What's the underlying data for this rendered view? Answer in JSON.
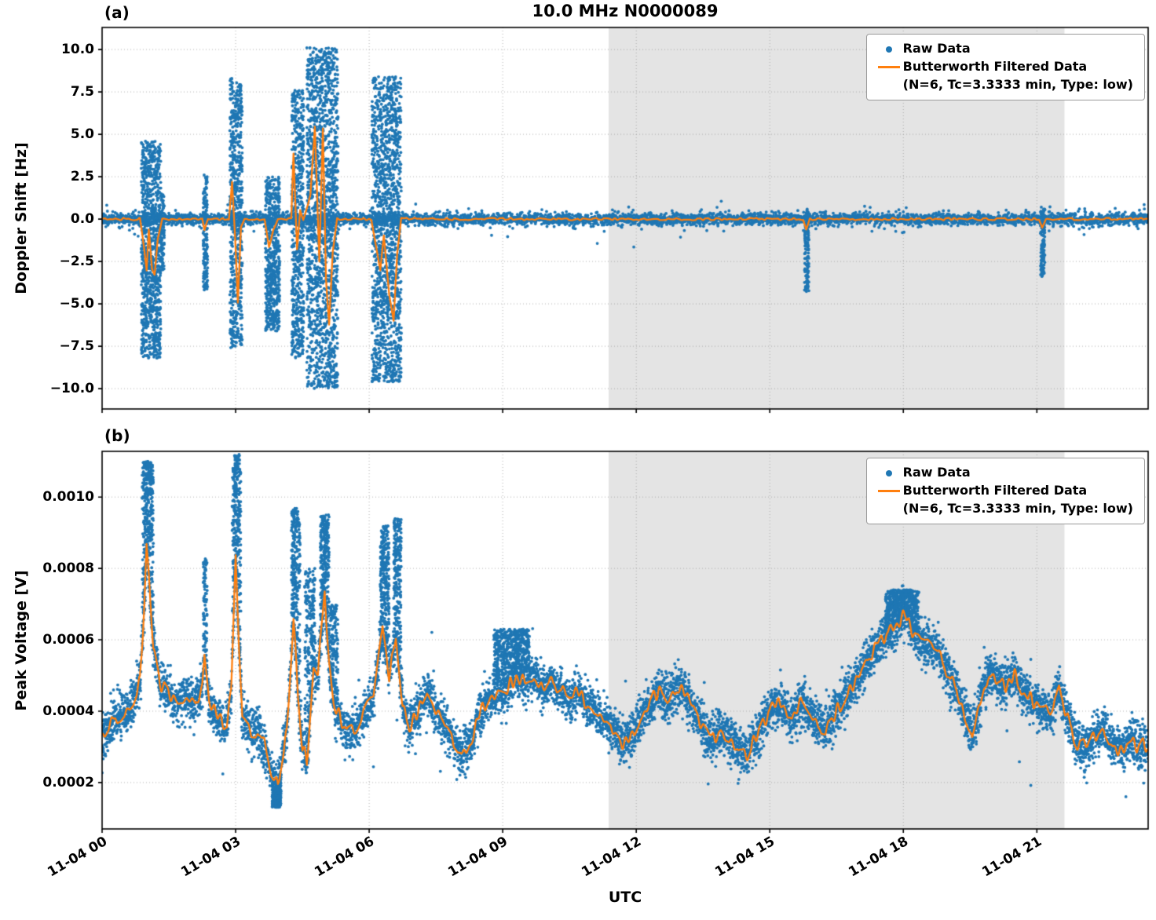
{
  "figure": {
    "title": "10.0 MHz N0000089",
    "xlabel": "UTC",
    "colors": {
      "raw": "#1f77b4",
      "filtered": "#ff7f0e",
      "shade": "#e4e4e4",
      "grid": "#9a9a9a",
      "spine": "#000000",
      "background": "#ffffff"
    },
    "legend": {
      "raw_label": "Raw Data",
      "filtered_label": "Butterworth Filtered Data",
      "filtered_sub": "(N=6, Tc=3.3333 min, Type: low)"
    },
    "x_ticks": [
      {
        "hours": 0,
        "label": "11-04 00"
      },
      {
        "hours": 3,
        "label": "11-04 03"
      },
      {
        "hours": 6,
        "label": "11-04 06"
      },
      {
        "hours": 9,
        "label": "11-04 09"
      },
      {
        "hours": 12,
        "label": "11-04 12"
      },
      {
        "hours": 15,
        "label": "11-04 15"
      },
      {
        "hours": 18,
        "label": "11-04 18"
      },
      {
        "hours": 21,
        "label": "11-04 21"
      }
    ]
  },
  "chart_data": [
    {
      "type": "scatter",
      "tag": "(a)",
      "title": "10.0 MHz N0000089",
      "xlabel": "UTC",
      "ylabel": "Doppler Shift [Hz]",
      "xlim_hours": [
        0,
        23.5
      ],
      "ylim": [
        -11.2,
        11.3
      ],
      "y_ticks": [
        10.0,
        7.5,
        5.0,
        2.5,
        0.0,
        -2.5,
        -5.0,
        -7.5,
        -10.0
      ],
      "y_tick_labels": [
        "10.0",
        "7.5",
        "5.0",
        "2.5",
        "0.0",
        "−2.5",
        "−5.0",
        "−7.5",
        "−10.0"
      ],
      "grid": true,
      "legend_position": "upper right",
      "shaded_region_hours": [
        11.38,
        21.62
      ],
      "series": [
        {
          "name": "Raw Data",
          "kind": "scatter",
          "color": "#1f77b4",
          "baseline_mean": 0,
          "baseline_noise": 0.18,
          "bursts": [
            {
              "t0": 0.88,
              "t1": 1.32,
              "lo": -8.2,
              "hi": 4.6
            },
            {
              "t0": 1.32,
              "t1": 1.4,
              "lo": -3.0,
              "hi": 1.5,
              "d": 0.5
            },
            {
              "t0": 2.27,
              "t1": 2.37,
              "lo": -4.2,
              "hi": 2.6,
              "d": 0.8
            },
            {
              "t0": 2.87,
              "t1": 3.15,
              "lo": -7.6,
              "hi": 8.3
            },
            {
              "t0": 3.67,
              "t1": 3.99,
              "lo": -6.6,
              "hi": 2.5,
              "d": 0.8
            },
            {
              "t0": 4.26,
              "t1": 4.53,
              "lo": -8.2,
              "hi": 7.6
            },
            {
              "t0": 4.6,
              "t1": 5.3,
              "lo": -10.0,
              "hi": 10.1
            },
            {
              "t0": 6.06,
              "t1": 6.72,
              "lo": -9.6,
              "hi": 8.4
            },
            {
              "t0": 15.78,
              "t1": 15.88,
              "lo": -4.3,
              "hi": 0.6,
              "d": 0.6
            },
            {
              "t0": 21.08,
              "t1": 21.18,
              "lo": -3.4,
              "hi": 0.6,
              "d": 0.6
            }
          ]
        },
        {
          "name": "Butterworth Filtered Data (N=6, Tc=3.3333 min, Type: low)",
          "kind": "line",
          "color": "#ff7f0e",
          "keypoints": [
            [
              0,
              0
            ],
            [
              0.85,
              0
            ],
            [
              0.95,
              -1.8
            ],
            [
              1.0,
              -3.0
            ],
            [
              1.05,
              -0.6
            ],
            [
              1.12,
              -2.9
            ],
            [
              1.18,
              -3.3
            ],
            [
              1.25,
              -1.2
            ],
            [
              1.35,
              0
            ],
            [
              2.25,
              0
            ],
            [
              2.3,
              -0.7
            ],
            [
              2.38,
              0
            ],
            [
              2.85,
              0
            ],
            [
              2.92,
              2.2
            ],
            [
              2.99,
              -1.2
            ],
            [
              3.05,
              -4.9
            ],
            [
              3.12,
              -0.5
            ],
            [
              3.2,
              0
            ],
            [
              3.65,
              0
            ],
            [
              3.75,
              -1.6
            ],
            [
              3.85,
              -0.6
            ],
            [
              3.95,
              0
            ],
            [
              4.25,
              0
            ],
            [
              4.3,
              3.9
            ],
            [
              4.38,
              -1.8
            ],
            [
              4.45,
              0.5
            ],
            [
              4.52,
              0
            ],
            [
              4.68,
              1.4
            ],
            [
              4.78,
              5.5
            ],
            [
              4.88,
              -2.5
            ],
            [
              4.96,
              5.3
            ],
            [
              5.03,
              -3.5
            ],
            [
              5.1,
              -6.3
            ],
            [
              5.18,
              -2.0
            ],
            [
              5.28,
              0
            ],
            [
              6.05,
              0
            ],
            [
              6.15,
              -1.5
            ],
            [
              6.25,
              -3.0
            ],
            [
              6.33,
              -1.0
            ],
            [
              6.45,
              -4.5
            ],
            [
              6.55,
              -6.0
            ],
            [
              6.63,
              -2.0
            ],
            [
              6.72,
              0
            ],
            [
              15.75,
              0
            ],
            [
              15.82,
              -0.6
            ],
            [
              15.9,
              0
            ],
            [
              21.05,
              0
            ],
            [
              21.12,
              -0.5
            ],
            [
              21.2,
              0
            ],
            [
              23.5,
              0
            ]
          ]
        }
      ]
    },
    {
      "type": "scatter",
      "tag": "(b)",
      "xlabel": "UTC",
      "ylabel": "Peak Voltage [V]",
      "xlim_hours": [
        0,
        23.5
      ],
      "ylim": [
        7e-05,
        0.001128
      ],
      "y_ticks": [
        0.001,
        0.0008,
        0.0006,
        0.0004,
        0.0002
      ],
      "y_tick_labels": [
        "0.0010",
        "0.0008",
        "0.0006",
        "0.0004",
        "0.0002"
      ],
      "grid": true,
      "legend_position": "upper right",
      "shaded_region_hours": [
        11.38,
        21.62
      ],
      "series": [
        {
          "name": "Raw Data",
          "kind": "scatter",
          "color": "#1f77b4",
          "band_noise": 3e-05,
          "mean_keypoints": [
            [
              0,
              0.00032
            ],
            [
              0.3,
              0.00038
            ],
            [
              0.5,
              0.0004
            ],
            [
              0.7,
              0.00042
            ],
            [
              0.85,
              0.00048
            ],
            [
              0.95,
              0.0007
            ],
            [
              1.0,
              0.00086
            ],
            [
              1.05,
              0.00078
            ],
            [
              1.15,
              0.00058
            ],
            [
              1.3,
              0.00048
            ],
            [
              1.5,
              0.00045
            ],
            [
              1.7,
              0.00042
            ],
            [
              1.9,
              0.00045
            ],
            [
              2.1,
              0.00042
            ],
            [
              2.25,
              0.00048
            ],
            [
              2.3,
              0.00055
            ],
            [
              2.4,
              0.00042
            ],
            [
              2.6,
              0.00038
            ],
            [
              2.8,
              0.00036
            ],
            [
              2.9,
              0.00045
            ],
            [
              3.0,
              0.00084
            ],
            [
              3.07,
              0.0006
            ],
            [
              3.15,
              0.00038
            ],
            [
              3.3,
              0.00035
            ],
            [
              3.5,
              0.00034
            ],
            [
              3.65,
              0.0003
            ],
            [
              3.8,
              0.00022
            ],
            [
              3.95,
              0.00019
            ],
            [
              4.05,
              0.00028
            ],
            [
              4.15,
              0.00035
            ],
            [
              4.3,
              0.00066
            ],
            [
              4.4,
              0.00045
            ],
            [
              4.5,
              0.0003
            ],
            [
              4.6,
              0.00026
            ],
            [
              4.75,
              0.00052
            ],
            [
              4.85,
              0.0005
            ],
            [
              5.0,
              0.00074
            ],
            [
              5.1,
              0.00052
            ],
            [
              5.2,
              0.00042
            ],
            [
              5.35,
              0.00038
            ],
            [
              5.5,
              0.00034
            ],
            [
              5.7,
              0.00035
            ],
            [
              5.9,
              0.0004
            ],
            [
              6.1,
              0.00044
            ],
            [
              6.3,
              0.00063
            ],
            [
              6.45,
              0.0005
            ],
            [
              6.6,
              0.00061
            ],
            [
              6.75,
              0.00042
            ],
            [
              6.9,
              0.00036
            ],
            [
              7.1,
              0.0004
            ],
            [
              7.3,
              0.00046
            ],
            [
              7.5,
              0.0004
            ],
            [
              7.7,
              0.00036
            ],
            [
              7.9,
              0.00032
            ],
            [
              8.1,
              0.00028
            ],
            [
              8.3,
              0.00032
            ],
            [
              8.5,
              0.0004
            ],
            [
              8.7,
              0.00044
            ],
            [
              8.9,
              0.00046
            ],
            [
              9.1,
              0.00046
            ],
            [
              9.3,
              0.0005
            ],
            [
              9.5,
              0.00048
            ],
            [
              9.7,
              0.0005
            ],
            [
              9.9,
              0.00046
            ],
            [
              10.1,
              0.00048
            ],
            [
              10.3,
              0.00046
            ],
            [
              10.5,
              0.00042
            ],
            [
              10.7,
              0.00046
            ],
            [
              10.9,
              0.00042
            ],
            [
              11.1,
              0.0004
            ],
            [
              11.3,
              0.00037
            ],
            [
              11.5,
              0.00035
            ],
            [
              11.7,
              0.00031
            ],
            [
              11.9,
              0.00033
            ],
            [
              12.1,
              0.00038
            ],
            [
              12.3,
              0.00042
            ],
            [
              12.5,
              0.00046
            ],
            [
              12.7,
              0.00043
            ],
            [
              12.9,
              0.00047
            ],
            [
              13.1,
              0.00046
            ],
            [
              13.3,
              0.0004
            ],
            [
              13.5,
              0.00035
            ],
            [
              13.7,
              0.00032
            ],
            [
              13.9,
              0.00035
            ],
            [
              14.1,
              0.00032
            ],
            [
              14.3,
              0.00029
            ],
            [
              14.5,
              0.00028
            ],
            [
              14.7,
              0.00033
            ],
            [
              14.9,
              0.00038
            ],
            [
              15.1,
              0.00041
            ],
            [
              15.3,
              0.00042
            ],
            [
              15.5,
              0.00038
            ],
            [
              15.7,
              0.00042
            ],
            [
              15.9,
              0.00039
            ],
            [
              16.1,
              0.00036
            ],
            [
              16.3,
              0.00035
            ],
            [
              16.5,
              0.0004
            ],
            [
              16.7,
              0.00044
            ],
            [
              16.9,
              0.00048
            ],
            [
              17.1,
              0.00052
            ],
            [
              17.3,
              0.00056
            ],
            [
              17.5,
              0.0006
            ],
            [
              17.7,
              0.00062
            ],
            [
              17.9,
              0.00065
            ],
            [
              18.05,
              0.00068
            ],
            [
              18.2,
              0.00062
            ],
            [
              18.4,
              0.00059
            ],
            [
              18.6,
              0.00058
            ],
            [
              18.8,
              0.00056
            ],
            [
              19.0,
              0.00051
            ],
            [
              19.2,
              0.00046
            ],
            [
              19.4,
              0.00038
            ],
            [
              19.55,
              0.00033
            ],
            [
              19.7,
              0.00042
            ],
            [
              19.9,
              0.0005
            ],
            [
              20.1,
              0.00049
            ],
            [
              20.3,
              0.00047
            ],
            [
              20.5,
              0.0005
            ],
            [
              20.7,
              0.00046
            ],
            [
              20.9,
              0.00043
            ],
            [
              21.1,
              0.00041
            ],
            [
              21.3,
              0.00039
            ],
            [
              21.5,
              0.00046
            ],
            [
              21.7,
              0.00038
            ],
            [
              21.9,
              0.00031
            ],
            [
              22.1,
              0.0003
            ],
            [
              22.3,
              0.00033
            ],
            [
              22.5,
              0.00035
            ],
            [
              22.7,
              0.00031
            ],
            [
              22.9,
              0.00029
            ],
            [
              23.1,
              0.00032
            ],
            [
              23.3,
              0.0003
            ],
            [
              23.5,
              0.00031
            ]
          ],
          "bursts": [
            {
              "t0": 0.9,
              "t1": 1.15,
              "hi": 0.0011
            },
            {
              "t0": 2.27,
              "t1": 2.36,
              "hi": 0.00083,
              "d": 0.7
            },
            {
              "t0": 2.92,
              "t1": 3.12,
              "hi": 0.00112
            },
            {
              "t0": 3.82,
              "t1": 4.02,
              "lo": 0.00013
            },
            {
              "t0": 4.25,
              "t1": 4.45,
              "hi": 0.00097
            },
            {
              "t0": 4.55,
              "t1": 4.78,
              "hi": 0.0008,
              "d": 0.7
            },
            {
              "t0": 4.9,
              "t1": 5.1,
              "hi": 0.00095
            },
            {
              "t0": 5.12,
              "t1": 5.3,
              "hi": 0.0007,
              "d": 0.6
            },
            {
              "t0": 6.25,
              "t1": 6.45,
              "hi": 0.00092
            },
            {
              "t0": 6.55,
              "t1": 6.72,
              "hi": 0.00094
            },
            {
              "t0": 8.8,
              "t1": 9.6,
              "hi": 0.00063,
              "d": 0.5
            },
            {
              "t0": 17.6,
              "t1": 18.35,
              "hi": 0.00074,
              "d": 0.5
            }
          ]
        },
        {
          "name": "Butterworth Filtered Data (N=6, Tc=3.3333 min, Type: low)",
          "kind": "line",
          "color": "#ff7f0e"
        }
      ]
    }
  ]
}
